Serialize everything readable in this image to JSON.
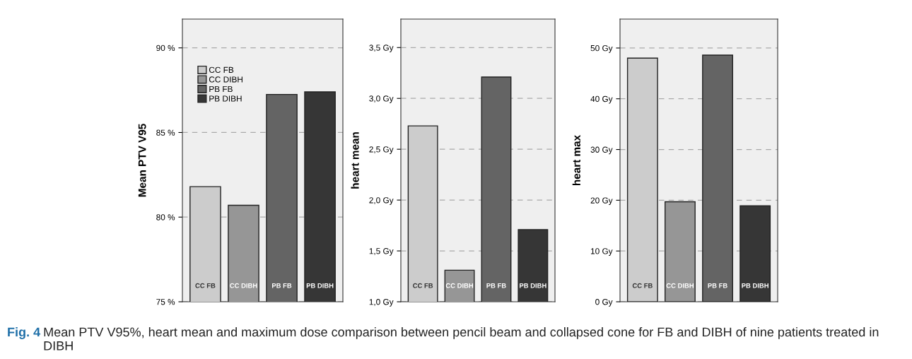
{
  "chart_data": [
    {
      "type": "bar",
      "ylabel": "Mean PTV V95",
      "categories": [
        "CC FB",
        "CC DIBH",
        "PB FB",
        "PB DIBH"
      ],
      "series": [
        {
          "name": "CC FB",
          "color": "#cccccc",
          "values": [
            81.8,
            null,
            null,
            null
          ]
        },
        {
          "name": "CC DIBH",
          "color": "#969696",
          "values": [
            null,
            80.7,
            null,
            null
          ]
        },
        {
          "name": "PB FB",
          "color": "#646464",
          "values": [
            null,
            null,
            87.25,
            null
          ]
        },
        {
          "name": "PB DIBH",
          "color": "#363636",
          "values": [
            null,
            null,
            null,
            87.4
          ]
        }
      ],
      "ylim": [
        75,
        91.7
      ],
      "yticks": [
        {
          "value": 75,
          "label": "75 %"
        },
        {
          "value": 80,
          "label": "80 %"
        },
        {
          "value": 85,
          "label": "85 %"
        },
        {
          "value": 90,
          "label": "90 %"
        }
      ],
      "grid": "y",
      "legend": "top left",
      "tick_labels": "y",
      "annotations": [
        "Fig. 4",
        "Mean PTV V95%, heart mean and maximum dose comparison between pencil beam and collapsed cone for FB and DIBH of nine patients treated in DIBH"
      ]
    },
    {
      "type": "bar",
      "ylabel": "heart mean",
      "categories": [
        "CC FB",
        "CC DIBH",
        "PB FB",
        "PB DIBH"
      ],
      "values": [
        2.73,
        1.31,
        3.21,
        1.71
      ],
      "colors": [
        "#cccccc",
        "#969696",
        "#646464",
        "#363636"
      ],
      "ylim": [
        1.0,
        3.78
      ],
      "yticks": [
        {
          "value": 1.0,
          "label": "1,0 Gy"
        },
        {
          "value": 1.5,
          "label": "1,5 Gy"
        },
        {
          "value": 2.0,
          "label": "2,0 Gy"
        },
        {
          "value": 2.5,
          "label": "2,5 Gy"
        },
        {
          "value": 3.0,
          "label": "3,0 Gy"
        },
        {
          "value": 3.5,
          "label": "3,5 Gy"
        }
      ],
      "grid": "y",
      "tick_labels": "y"
    },
    {
      "type": "bar",
      "ylabel": "heart max",
      "categories": [
        "CC FB",
        "CC DIBH",
        "PB FB",
        "PB DIBH"
      ],
      "values": [
        48.0,
        19.7,
        48.6,
        18.9
      ],
      "colors": [
        "#cccccc",
        "#969696",
        "#646464",
        "#363636"
      ],
      "ylim": [
        0,
        55.7
      ],
      "yticks": [
        {
          "value": 0,
          "label": "0 Gy"
        },
        {
          "value": 10,
          "label": "10 Gy"
        },
        {
          "value": 20,
          "label": "20 Gy"
        },
        {
          "value": 30,
          "label": "30 Gy"
        },
        {
          "value": 40,
          "label": "40 Gy"
        },
        {
          "value": 50,
          "label": "50 Gy"
        }
      ],
      "grid": "y",
      "tick_labels": "y"
    }
  ]
}
